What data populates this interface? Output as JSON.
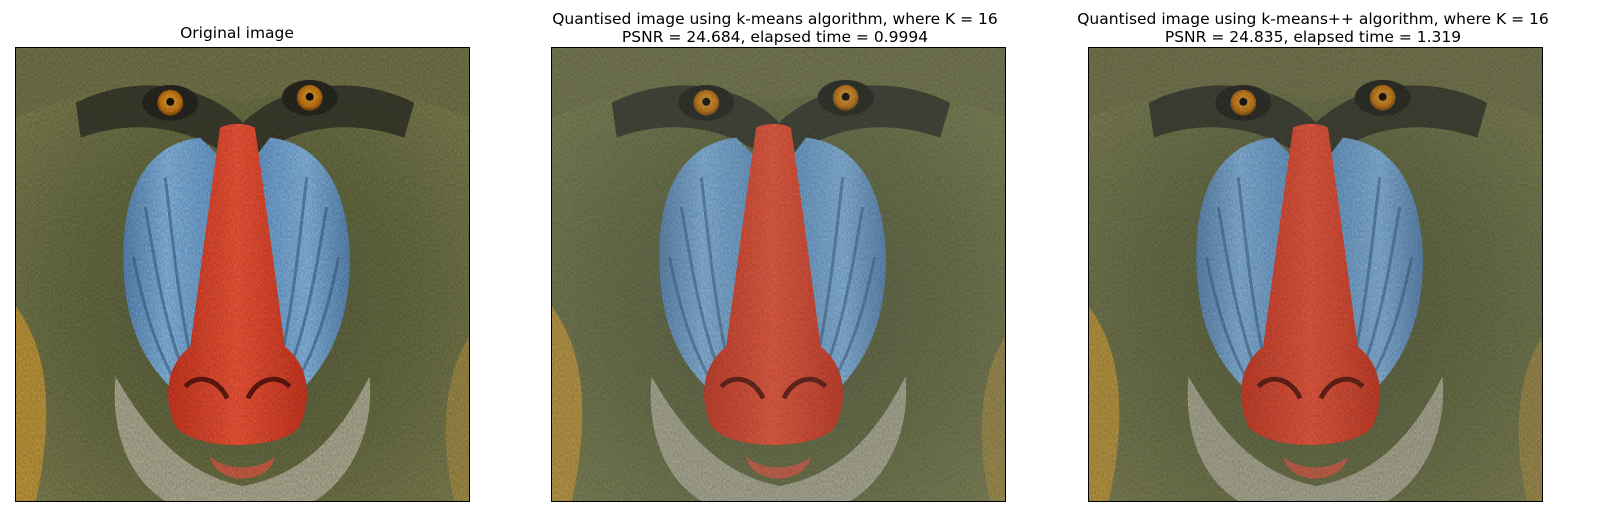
{
  "panels": [
    {
      "title_lines": [
        "Original image"
      ],
      "variant": "original"
    },
    {
      "title_lines": [
        "Quantised image using k-means algorithm, where K = 16",
        "PSNR = 24.684, elapsed time = 0.9994"
      ],
      "variant": "kmeans"
    },
    {
      "title_lines": [
        "Quantised image using k-means++ algorithm, where K = 16",
        "PSNR = 24.835, elapsed time = 1.319"
      ],
      "variant": "kmeanspp"
    }
  ],
  "colors": {
    "fur_dark": "#3a3b2c",
    "fur_mid": "#6d7248",
    "fur_light": "#a8a46a",
    "cheek_blue": "#7fb6e8",
    "nose_red": "#f24a2e",
    "beard": "#c9c6b2",
    "amber": "#d8a33a",
    "eye": "#e08a1a"
  }
}
